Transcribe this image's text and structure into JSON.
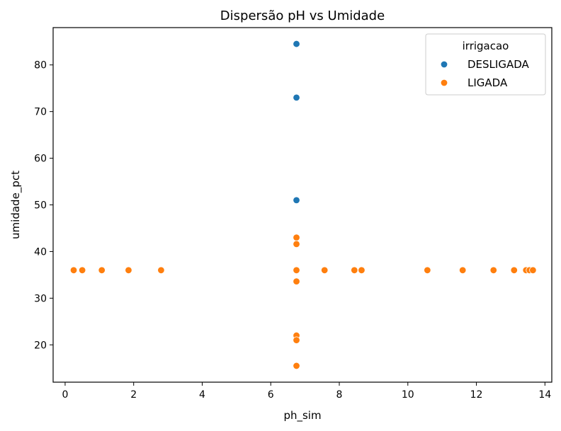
{
  "chart_data": {
    "type": "scatter",
    "title": "Dispersão pH vs Umidade",
    "xlabel": "ph_sim",
    "ylabel": "umidade_pct",
    "xlim": [
      -0.35,
      14.2
    ],
    "ylim": [
      12,
      88
    ],
    "xticks": [
      0,
      2,
      4,
      6,
      8,
      10,
      12,
      14
    ],
    "yticks": [
      20,
      30,
      40,
      50,
      60,
      70,
      80
    ],
    "grid": false,
    "legend": {
      "title": "irrigacao",
      "placement": "top-right"
    },
    "series": [
      {
        "name": "DESLIGADA",
        "color": "#1f77b4",
        "points": [
          {
            "x": 6.75,
            "y": 84.5
          },
          {
            "x": 6.75,
            "y": 73.0
          },
          {
            "x": 6.75,
            "y": 51.0
          }
        ]
      },
      {
        "name": "LIGADA",
        "color": "#ff7f0e",
        "points": [
          {
            "x": 6.75,
            "y": 43.0
          },
          {
            "x": 6.75,
            "y": 41.6
          },
          {
            "x": 6.75,
            "y": 36.0
          },
          {
            "x": 6.75,
            "y": 33.6
          },
          {
            "x": 6.75,
            "y": 22.0
          },
          {
            "x": 6.75,
            "y": 21.0
          },
          {
            "x": 6.75,
            "y": 15.5
          },
          {
            "x": 0.25,
            "y": 36.0
          },
          {
            "x": 0.5,
            "y": 36.0
          },
          {
            "x": 1.07,
            "y": 36.0
          },
          {
            "x": 1.85,
            "y": 36.0
          },
          {
            "x": 2.8,
            "y": 36.0
          },
          {
            "x": 7.57,
            "y": 36.0
          },
          {
            "x": 8.44,
            "y": 36.0
          },
          {
            "x": 8.65,
            "y": 36.0
          },
          {
            "x": 10.57,
            "y": 36.0
          },
          {
            "x": 11.6,
            "y": 36.0
          },
          {
            "x": 12.5,
            "y": 36.0
          },
          {
            "x": 13.1,
            "y": 36.0
          },
          {
            "x": 13.45,
            "y": 36.0
          },
          {
            "x": 13.55,
            "y": 36.0
          },
          {
            "x": 13.65,
            "y": 36.0
          }
        ]
      }
    ]
  }
}
